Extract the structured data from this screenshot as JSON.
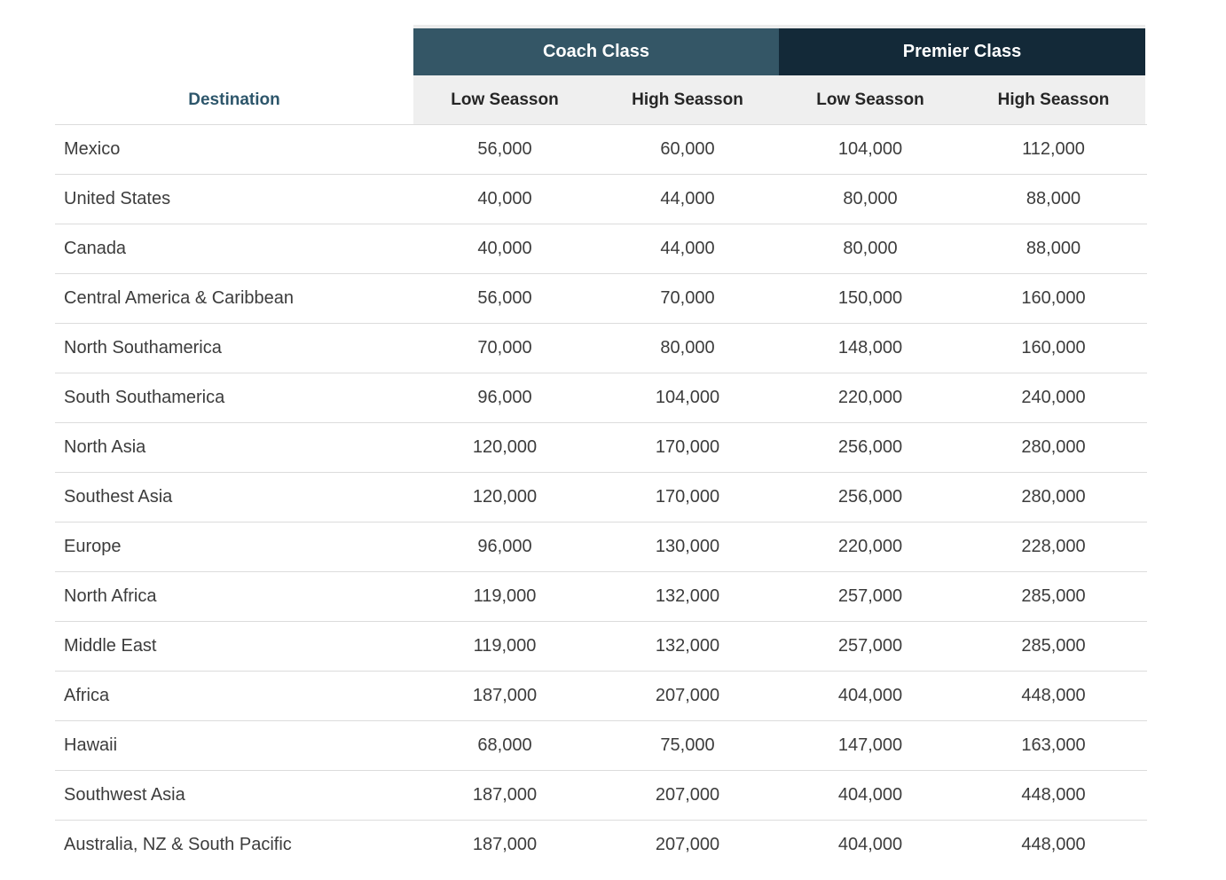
{
  "colors": {
    "coach-bg": "#345666",
    "premier-bg": "#132938",
    "season-bg": "#efefef",
    "dest-hdr-color": "#2d566b",
    "body-text": "#3c3c3c",
    "line-color": "#dcdcdc"
  },
  "table": {
    "destination_header": "Destination",
    "class_headers": [
      {
        "label": "Coach Class"
      },
      {
        "label": "Premier Class"
      }
    ],
    "season_headers": [
      "Low Seasson",
      "High Seasson",
      "Low Seasson",
      "High Seasson"
    ],
    "rows": [
      {
        "destination": "Mexico",
        "values": [
          "56,000",
          "60,000",
          "104,000",
          "112,000"
        ]
      },
      {
        "destination": "United States",
        "values": [
          "40,000",
          "44,000",
          "80,000",
          "88,000"
        ]
      },
      {
        "destination": "Canada",
        "values": [
          "40,000",
          "44,000",
          "80,000",
          "88,000"
        ]
      },
      {
        "destination": "Central America & Caribbean",
        "values": [
          "56,000",
          "70,000",
          "150,000",
          "160,000"
        ]
      },
      {
        "destination": "North Southamerica",
        "values": [
          "70,000",
          "80,000",
          "148,000",
          "160,000"
        ]
      },
      {
        "destination": "South Southamerica",
        "values": [
          "96,000",
          "104,000",
          "220,000",
          "240,000"
        ]
      },
      {
        "destination": "North Asia",
        "values": [
          "120,000",
          "170,000",
          "256,000",
          "280,000"
        ]
      },
      {
        "destination": "Southest Asia",
        "values": [
          "120,000",
          "170,000",
          "256,000",
          "280,000"
        ]
      },
      {
        "destination": "Europe",
        "values": [
          "96,000",
          "130,000",
          "220,000",
          "228,000"
        ]
      },
      {
        "destination": "North Africa",
        "values": [
          "119,000",
          "132,000",
          "257,000",
          "285,000"
        ]
      },
      {
        "destination": "Middle East",
        "values": [
          "119,000",
          "132,000",
          "257,000",
          "285,000"
        ]
      },
      {
        "destination": "Africa",
        "values": [
          "187,000",
          "207,000",
          "404,000",
          "448,000"
        ]
      },
      {
        "destination": "Hawaii",
        "values": [
          "68,000",
          "75,000",
          "147,000",
          "163,000"
        ]
      },
      {
        "destination": "Southwest Asia",
        "values": [
          "187,000",
          "207,000",
          "404,000",
          "448,000"
        ]
      },
      {
        "destination": "Australia, NZ & South Pacific",
        "values": [
          "187,000",
          "207,000",
          "404,000",
          "448,000"
        ]
      }
    ]
  },
  "chart_data": {
    "type": "table",
    "title": "",
    "categories": [
      "Mexico",
      "United States",
      "Canada",
      "Central America & Caribbean",
      "North Southamerica",
      "South Southamerica",
      "North Asia",
      "Southest Asia",
      "Europe",
      "North Africa",
      "Middle East",
      "Africa",
      "Hawaii",
      "Southwest Asia",
      "Australia, NZ & South Pacific"
    ],
    "series": [
      {
        "name": "Coach Class Low Seasson",
        "values": [
          56000,
          40000,
          40000,
          56000,
          70000,
          96000,
          120000,
          120000,
          96000,
          119000,
          119000,
          187000,
          68000,
          187000,
          187000
        ]
      },
      {
        "name": "Coach Class High Seasson",
        "values": [
          60000,
          44000,
          44000,
          70000,
          80000,
          104000,
          170000,
          170000,
          130000,
          132000,
          132000,
          207000,
          75000,
          207000,
          207000
        ]
      },
      {
        "name": "Premier Class Low Seasson",
        "values": [
          104000,
          80000,
          80000,
          150000,
          148000,
          220000,
          256000,
          256000,
          220000,
          257000,
          257000,
          404000,
          147000,
          404000,
          404000
        ]
      },
      {
        "name": "Premier Class High Seasson",
        "values": [
          112000,
          88000,
          88000,
          160000,
          160000,
          240000,
          280000,
          280000,
          228000,
          285000,
          285000,
          448000,
          163000,
          448000,
          448000
        ]
      }
    ]
  }
}
